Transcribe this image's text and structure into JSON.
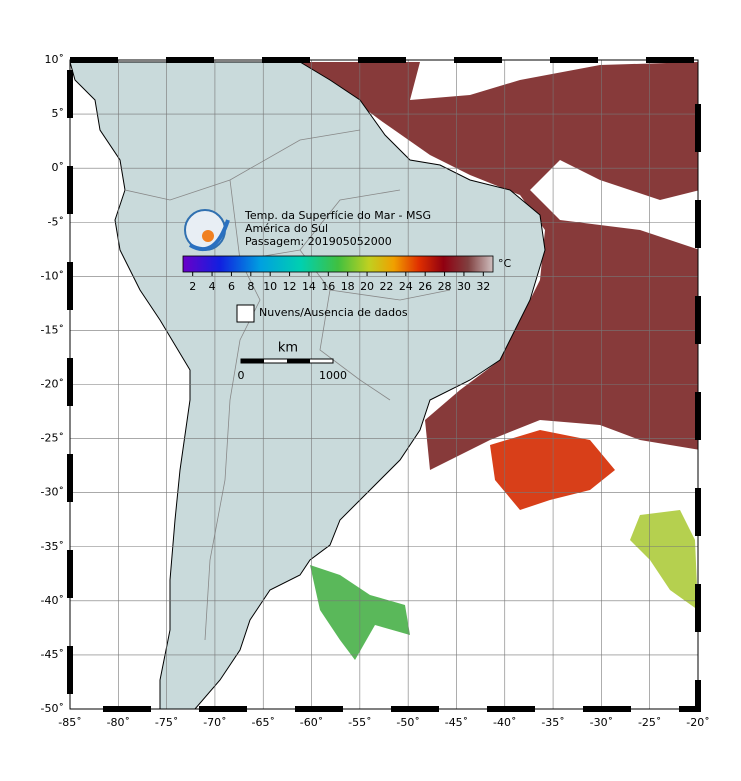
{
  "map": {
    "title": "Temp. da Superfície do Mar - MSG",
    "region": "América do Sul",
    "pass": "Passagem: 201905052000",
    "colorbar": {
      "unit": "°C",
      "lim": [
        1,
        33
      ],
      "ticks": [
        2,
        4,
        6,
        8,
        10,
        12,
        14,
        16,
        18,
        20,
        22,
        24,
        26,
        28,
        30,
        32
      ]
    },
    "legend": "Nuvens/Ausencia de dados",
    "scale": {
      "unit": "km",
      "labels": [
        "0",
        "1000"
      ]
    },
    "xlim": [
      -85,
      -20
    ],
    "ylim": [
      -50,
      10
    ],
    "xticks": [
      {
        "value": -85,
        "label": "-85˚"
      },
      {
        "value": -80,
        "label": "-80˚"
      },
      {
        "value": -75,
        "label": "-75˚"
      },
      {
        "value": -70,
        "label": "-70˚"
      },
      {
        "value": -65,
        "label": "-65˚"
      },
      {
        "value": -60,
        "label": "-60˚"
      },
      {
        "value": -55,
        "label": "-55˚"
      },
      {
        "value": -50,
        "label": "-50˚"
      },
      {
        "value": -45,
        "label": "-45˚"
      },
      {
        "value": -40,
        "label": "-40˚"
      },
      {
        "value": -35,
        "label": "-35˚"
      },
      {
        "value": -30,
        "label": "-30˚"
      },
      {
        "value": -25,
        "label": "-25˚"
      },
      {
        "value": -20,
        "label": "-20˚"
      }
    ],
    "yticks": [
      {
        "value": 10,
        "label": "10˚"
      },
      {
        "value": 5,
        "label": "5˚"
      },
      {
        "value": 0,
        "label": "0˚"
      },
      {
        "value": -5,
        "label": "-5˚"
      },
      {
        "value": -10,
        "label": "-10˚"
      },
      {
        "value": -15,
        "label": "-15˚"
      },
      {
        "value": -20,
        "label": "-20˚"
      },
      {
        "value": -25,
        "label": "-25˚"
      },
      {
        "value": -30,
        "label": "-30˚"
      },
      {
        "value": -35,
        "label": "-35˚"
      },
      {
        "value": -40,
        "label": "-40˚"
      },
      {
        "value": -45,
        "label": "-45˚"
      },
      {
        "value": -50,
        "label": "-50˚"
      }
    ]
  }
}
